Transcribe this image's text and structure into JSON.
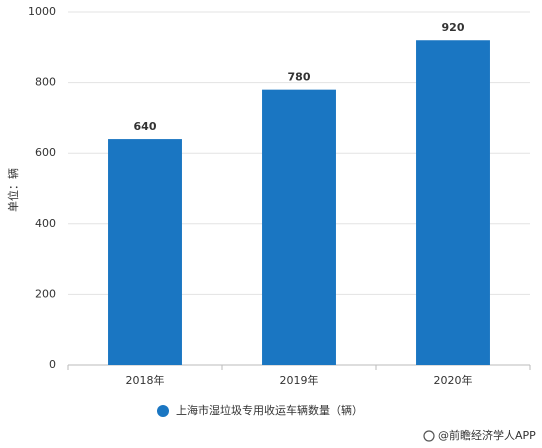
{
  "chart_data": {
    "type": "bar",
    "y_label": "单位：辆",
    "categories": [
      "2018年",
      "2019年",
      "2020年"
    ],
    "series": [
      {
        "name": "上海市湿垃圾专用收运车辆数量（辆）",
        "color": "#1a76c2",
        "values": [
          640,
          780,
          920
        ]
      }
    ],
    "ylim": [
      0,
      1000
    ],
    "yticks": [
      0,
      200,
      400,
      600,
      800,
      1000
    ],
    "grid": true,
    "legend": "bottom",
    "source": "@前瞻经济学人APP"
  }
}
